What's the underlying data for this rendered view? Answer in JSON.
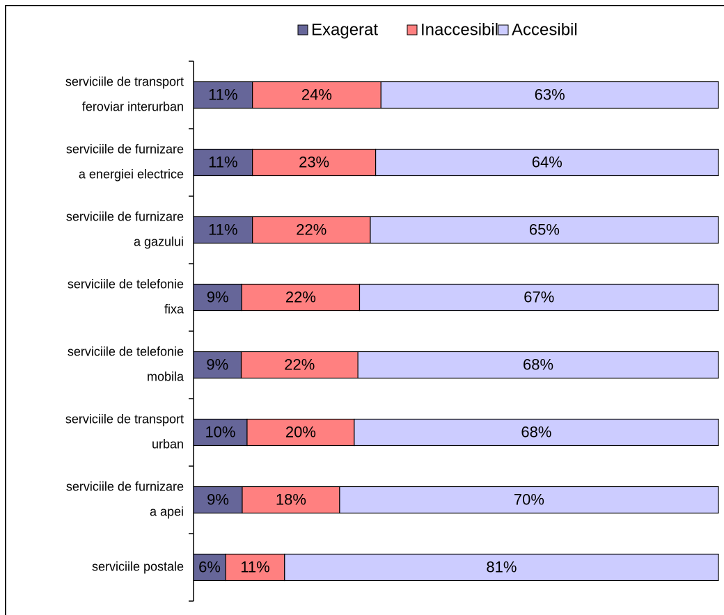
{
  "chart_data": {
    "type": "bar",
    "orientation": "horizontal",
    "stacking": "percent",
    "legend": "top",
    "categories": [
      [
        "serviciile de transport",
        "feroviar interurban"
      ],
      [
        "serviciile de furnizare",
        "a energiei electrice"
      ],
      [
        "serviciile de furnizare",
        "a gazului"
      ],
      [
        "serviciile de telefonie",
        "fixa"
      ],
      [
        "serviciile de telefonie",
        "mobila"
      ],
      [
        "serviciile de transport",
        "urban"
      ],
      [
        "serviciile de furnizare",
        "a apei"
      ],
      [
        "serviciile postale"
      ]
    ],
    "series": [
      {
        "name": "Exagerat",
        "color": "#666699",
        "values": [
          11,
          11,
          11,
          9,
          9,
          10,
          9,
          6
        ],
        "value_labels": [
          "11%",
          "11%",
          "11%",
          "9%",
          "9%",
          "10%",
          "9%",
          "6%"
        ]
      },
      {
        "name": "Inaccesibil",
        "color": "#ff8080",
        "values": [
          24,
          23,
          22,
          22,
          22,
          20,
          18,
          11
        ],
        "value_labels": [
          "24%",
          "23%",
          "22%",
          "22%",
          "22%",
          "20%",
          "18%",
          "11%"
        ]
      },
      {
        "name": "Accesibil",
        "color": "#ccccff",
        "values": [
          63,
          64,
          65,
          67,
          68,
          68,
          70,
          81
        ],
        "value_labels": [
          "63%",
          "64%",
          "65%",
          "67%",
          "68%",
          "68%",
          "70%",
          "81%"
        ]
      }
    ]
  }
}
